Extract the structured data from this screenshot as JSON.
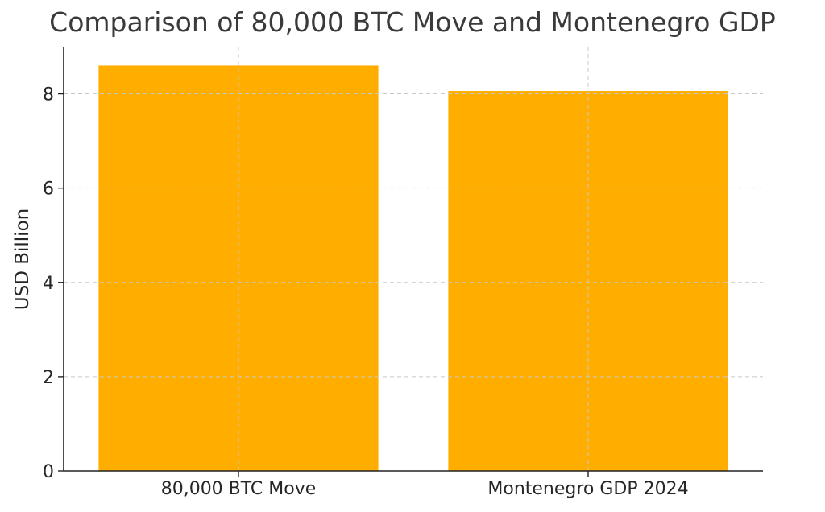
{
  "chart_data": {
    "type": "bar",
    "title": "Comparison of 80,000 BTC Move and Montenegro GDP",
    "xlabel": "",
    "ylabel": "USD Billion",
    "categories": [
      "80,000 BTC Move",
      "Montenegro GDP 2024"
    ],
    "values": [
      8.6,
      8.06
    ],
    "ylim": [
      0,
      9
    ],
    "yticks": [
      0,
      2,
      4,
      6,
      8
    ],
    "grid": true,
    "bar_color": "#FFAE00",
    "grid_color": "#c8c8c8"
  }
}
